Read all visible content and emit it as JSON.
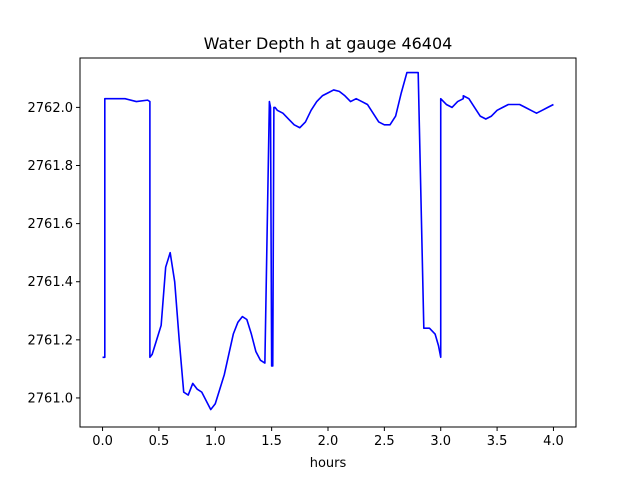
{
  "chart_data": {
    "type": "line",
    "title": "Water Depth h at gauge 46404",
    "xlabel": "hours",
    "ylabel": "",
    "xlim": [
      -0.2,
      4.2
    ],
    "ylim": [
      2760.9,
      2762.17
    ],
    "xticks": [
      0.0,
      0.5,
      1.0,
      1.5,
      2.0,
      2.5,
      3.0,
      3.5,
      4.0
    ],
    "xtick_labels": [
      "0.0",
      "0.5",
      "1.0",
      "1.5",
      "2.0",
      "2.5",
      "3.0",
      "3.5",
      "4.0"
    ],
    "yticks": [
      2761.0,
      2761.2,
      2761.4,
      2761.6,
      2761.8,
      2762.0
    ],
    "ytick_labels": [
      "2761.0",
      "2761.2",
      "2761.4",
      "2761.6",
      "2761.8",
      "2762.0"
    ],
    "grid": false,
    "series": [
      {
        "color": "#0000ff",
        "x": [
          0.0,
          0.02,
          0.02,
          0.1,
          0.2,
          0.3,
          0.4,
          0.42,
          0.42,
          0.44,
          0.48,
          0.52,
          0.56,
          0.6,
          0.62,
          0.64,
          0.68,
          0.72,
          0.76,
          0.8,
          0.84,
          0.88,
          0.92,
          0.96,
          1.0,
          1.04,
          1.08,
          1.12,
          1.16,
          1.2,
          1.24,
          1.28,
          1.32,
          1.36,
          1.4,
          1.44,
          1.48,
          1.49,
          1.5,
          1.5,
          1.51,
          1.52,
          1.53,
          1.53,
          1.55,
          1.6,
          1.65,
          1.7,
          1.75,
          1.8,
          1.85,
          1.9,
          1.95,
          2.0,
          2.05,
          2.1,
          2.15,
          2.2,
          2.25,
          2.3,
          2.35,
          2.4,
          2.45,
          2.5,
          2.55,
          2.6,
          2.65,
          2.7,
          2.75,
          2.8,
          2.85,
          2.9,
          2.95,
          2.98,
          3.0,
          3.0,
          3.05,
          3.1,
          3.15,
          3.2,
          3.2,
          3.25,
          3.3,
          3.35,
          3.4,
          3.45,
          3.5,
          3.55,
          3.6,
          3.65,
          3.7,
          3.75,
          3.8,
          3.85,
          3.9,
          3.95,
          4.0
        ],
        "y": [
          2761.14,
          2761.14,
          2762.03,
          2762.03,
          2762.03,
          2762.02,
          2762.025,
          2762.02,
          2761.14,
          2761.15,
          2761.2,
          2761.25,
          2761.45,
          2761.5,
          2761.45,
          2761.4,
          2761.2,
          2761.02,
          2761.01,
          2761.05,
          2761.03,
          2761.02,
          2760.99,
          2760.96,
          2760.98,
          2761.03,
          2761.08,
          2761.15,
          2761.22,
          2761.26,
          2761.28,
          2761.27,
          2761.22,
          2761.16,
          2761.13,
          2761.12,
          2762.02,
          2762.0,
          2761.12,
          2761.11,
          2761.11,
          2762.0,
          2762.0,
          2762.0,
          2761.99,
          2761.98,
          2761.96,
          2761.94,
          2761.93,
          2761.95,
          2761.99,
          2762.02,
          2762.04,
          2762.05,
          2762.06,
          2762.055,
          2762.04,
          2762.02,
          2762.03,
          2762.02,
          2762.01,
          2761.98,
          2761.95,
          2761.94,
          2761.94,
          2761.97,
          2762.05,
          2762.12,
          2762.12,
          2762.12,
          2761.24,
          2761.24,
          2761.22,
          2761.18,
          2761.14,
          2762.03,
          2762.01,
          2762.0,
          2762.02,
          2762.03,
          2762.04,
          2762.03,
          2762.0,
          2761.97,
          2761.96,
          2761.97,
          2761.99,
          2762.0,
          2762.01,
          2762.01,
          2762.01,
          2762.0,
          2761.99,
          2761.98,
          2761.99,
          2762.0,
          2762.01
        ]
      }
    ]
  }
}
